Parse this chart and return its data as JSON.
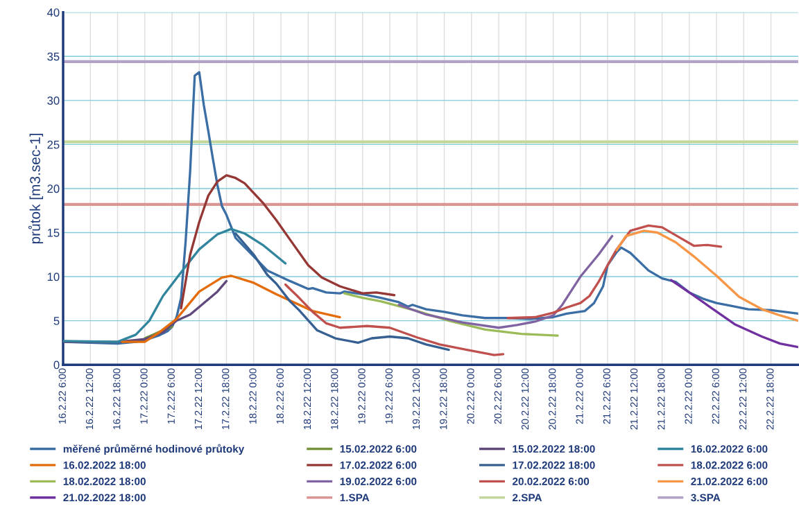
{
  "chart_data": {
    "type": "line",
    "ylabel": "průtok [m3.sec-1]",
    "ylim": [
      0,
      40
    ],
    "yticks": [
      0,
      5,
      10,
      15,
      20,
      25,
      30,
      35,
      40
    ],
    "xlim": [
      "2022-02-16T06:00",
      "2022-02-23T00:00"
    ],
    "xticks": [
      {
        "value": "2022-02-16T06:00",
        "label": "16.2.22 6:00"
      },
      {
        "value": "2022-02-16T12:00",
        "label": "16.2.22 12:00"
      },
      {
        "value": "2022-02-16T18:00",
        "label": "16.2.22 18:00"
      },
      {
        "value": "2022-02-17T00:00",
        "label": "17.2.22 0:00"
      },
      {
        "value": "2022-02-17T06:00",
        "label": "17.2.22 6:00"
      },
      {
        "value": "2022-02-17T12:00",
        "label": "17.2.22 12:00"
      },
      {
        "value": "2022-02-17T18:00",
        "label": "17.2.22 18:00"
      },
      {
        "value": "2022-02-18T00:00",
        "label": "18.2.22 0:00"
      },
      {
        "value": "2022-02-18T06:00",
        "label": "18.2.22 6:00"
      },
      {
        "value": "2022-02-18T12:00",
        "label": "18.2.22 12:00"
      },
      {
        "value": "2022-02-18T18:00",
        "label": "18.2.22 18:00"
      },
      {
        "value": "2022-02-19T00:00",
        "label": "19.2.22 0:00"
      },
      {
        "value": "2022-02-19T06:00",
        "label": "19.2.22 6:00"
      },
      {
        "value": "2022-02-19T12:00",
        "label": "19.2.22 12:00"
      },
      {
        "value": "2022-02-19T18:00",
        "label": "19.2.22 18:00"
      },
      {
        "value": "2022-02-20T00:00",
        "label": "20.2.22 0:00"
      },
      {
        "value": "2022-02-20T06:00",
        "label": "20.2.22 6:00"
      },
      {
        "value": "2022-02-20T12:00",
        "label": "20.2.22 12:00"
      },
      {
        "value": "2022-02-20T18:00",
        "label": "20.2.22 18:00"
      },
      {
        "value": "2022-02-21T00:00",
        "label": "21.2.22 0:00"
      },
      {
        "value": "2022-02-21T06:00",
        "label": "21.2.22 6:00"
      },
      {
        "value": "2022-02-21T12:00",
        "label": "21.2.22 12:00"
      },
      {
        "value": "2022-02-21T18:00",
        "label": "21.2.22 18:00"
      },
      {
        "value": "2022-02-22T00:00",
        "label": "22.2.22 0:00"
      },
      {
        "value": "2022-02-22T06:00",
        "label": "22.2.22 6:00"
      },
      {
        "value": "2022-02-22T12:00",
        "label": "22.2.22 12:00"
      },
      {
        "value": "2022-02-22T18:00",
        "label": "22.2.22 18:00"
      }
    ],
    "grid": true,
    "legend": "bottom",
    "marker": "none",
    "line_style": "solid",
    "series": [
      {
        "name": "měřené průměrné hodinové průtoky",
        "color": "#3a6ea5",
        "x": [
          "2022-02-16T06:00",
          "2022-02-16T12:00",
          "2022-02-16T18:00",
          "2022-02-16T22:00",
          "2022-02-17T00:00",
          "2022-02-17T03:00",
          "2022-02-17T05:00",
          "2022-02-17T06:00",
          "2022-02-17T07:00",
          "2022-02-17T08:00",
          "2022-02-17T09:00",
          "2022-02-17T10:00",
          "2022-02-17T11:00",
          "2022-02-17T12:00",
          "2022-02-17T13:00",
          "2022-02-17T14:00",
          "2022-02-17T15:00",
          "2022-02-17T16:00",
          "2022-02-17T17:00",
          "2022-02-17T18:00",
          "2022-02-17T20:00",
          "2022-02-18T00:00",
          "2022-02-18T03:00",
          "2022-02-18T08:00",
          "2022-02-18T12:00",
          "2022-02-18T13:00",
          "2022-02-18T16:00",
          "2022-02-18T19:00",
          "2022-02-18T20:00",
          "2022-02-19T00:00",
          "2022-02-19T04:00",
          "2022-02-19T08:00",
          "2022-02-19T10:00",
          "2022-02-19T11:00",
          "2022-02-19T14:00",
          "2022-02-19T18:00",
          "2022-02-19T22:00",
          "2022-02-20T03:00",
          "2022-02-20T08:00",
          "2022-02-20T13:00",
          "2022-02-20T18:00",
          "2022-02-20T21:00",
          "2022-02-21T01:00",
          "2022-02-21T03:00",
          "2022-02-21T05:00",
          "2022-02-21T06:00",
          "2022-02-21T08:00",
          "2022-02-21T09:00",
          "2022-02-21T11:00",
          "2022-02-21T15:00",
          "2022-02-21T18:00",
          "2022-02-21T21:00",
          "2022-02-22T00:00",
          "2022-02-22T03:00",
          "2022-02-22T06:00",
          "2022-02-22T09:00",
          "2022-02-22T13:00",
          "2022-02-22T18:00",
          "2022-02-23T00:00"
        ],
        "values": [
          2.6,
          2.5,
          2.4,
          2.6,
          2.8,
          3.3,
          3.8,
          4.3,
          5.4,
          7.6,
          14,
          22,
          32.8,
          33.2,
          29.5,
          26.5,
          23.4,
          20.4,
          18.0,
          17.0,
          14.4,
          12.3,
          10.7,
          9.5,
          8.6,
          8.7,
          8.2,
          8.1,
          8.3,
          8.0,
          7.6,
          7.1,
          6.6,
          6.8,
          6.3,
          6.0,
          5.6,
          5.3,
          5.3,
          5.2,
          5.4,
          5.8,
          6.1,
          7.0,
          8.9,
          11.3,
          12.8,
          13.3,
          12.7,
          10.7,
          9.8,
          9.4,
          8.2,
          7.5,
          7.0,
          6.7,
          6.3,
          6.2,
          5.8
        ]
      },
      {
        "name": "15.02.2022 6:00",
        "color": "#77933c",
        "x": [
          "2022-02-17T00:00",
          "2022-02-17T04:00",
          "2022-02-17T06:00"
        ],
        "values": [
          3.0,
          3.9,
          4.3
        ]
      },
      {
        "name": "15.02.2022 18:00",
        "color": "#604a7b",
        "x": [
          "2022-02-16T06:00",
          "2022-02-16T18:00",
          "2022-02-17T00:00",
          "2022-02-17T04:00",
          "2022-02-17T07:00",
          "2022-02-17T10:00",
          "2022-02-17T13:00",
          "2022-02-17T16:00",
          "2022-02-17T18:00"
        ],
        "values": [
          2.6,
          2.6,
          2.9,
          3.7,
          5.0,
          5.7,
          7.0,
          8.3,
          9.5
        ]
      },
      {
        "name": "16.02.2022 6:00",
        "color": "#31859c",
        "x": [
          "2022-02-16T06:00",
          "2022-02-16T18:00",
          "2022-02-16T22:00",
          "2022-02-17T01:00",
          "2022-02-17T04:00",
          "2022-02-17T08:00",
          "2022-02-17T12:00",
          "2022-02-17T16:00",
          "2022-02-17T19:00",
          "2022-02-17T22:00",
          "2022-02-18T02:00",
          "2022-02-18T07:00"
        ],
        "values": [
          2.7,
          2.6,
          3.4,
          5.0,
          7.8,
          10.5,
          13.1,
          14.8,
          15.4,
          14.9,
          13.6,
          11.5
        ]
      },
      {
        "name": "16.02.2022 18:00",
        "color": "#e46c0a",
        "x": [
          "2022-02-16T19:00",
          "2022-02-17T00:00",
          "2022-02-17T03:00",
          "2022-02-17T07:00",
          "2022-02-17T12:00",
          "2022-02-17T17:00",
          "2022-02-17T19:00",
          "2022-02-18T00:00",
          "2022-02-18T05:00",
          "2022-02-18T13:00",
          "2022-02-18T19:00"
        ],
        "values": [
          2.6,
          2.6,
          3.6,
          5.2,
          8.3,
          9.9,
          10.1,
          9.3,
          8.0,
          6.1,
          5.4
        ]
      },
      {
        "name": "17.02.2022 6:00",
        "color": "#953735",
        "x": [
          "2022-02-17T08:00",
          "2022-02-17T10:00",
          "2022-02-17T12:00",
          "2022-02-17T14:00",
          "2022-02-17T16:00",
          "2022-02-17T18:00",
          "2022-02-17T20:00",
          "2022-02-17T22:00",
          "2022-02-18T02:00",
          "2022-02-18T05:00",
          "2022-02-18T08:00",
          "2022-02-18T12:00",
          "2022-02-18T15:00",
          "2022-02-18T19:00",
          "2022-02-19T00:00",
          "2022-02-19T03:00",
          "2022-02-19T07:00"
        ],
        "values": [
          6.4,
          12.5,
          16.2,
          19.2,
          20.8,
          21.5,
          21.2,
          20.6,
          18.4,
          16.4,
          14.2,
          11.3,
          9.9,
          8.9,
          8.1,
          8.2,
          7.9
        ]
      },
      {
        "name": "17.02.2022 18:00",
        "color": "#376092",
        "x": [
          "2022-02-17T20:00",
          "2022-02-18T00:00",
          "2022-02-18T03:00",
          "2022-02-18T05:00",
          "2022-02-18T08:00",
          "2022-02-18T10:00",
          "2022-02-18T14:00",
          "2022-02-18T18:00",
          "2022-02-18T23:00",
          "2022-02-19T02:00",
          "2022-02-19T06:00",
          "2022-02-19T10:00",
          "2022-02-19T14:00",
          "2022-02-19T19:00"
        ],
        "values": [
          14.9,
          12.5,
          10.2,
          9.2,
          7.2,
          6.2,
          3.9,
          3.0,
          2.5,
          3.0,
          3.2,
          3.0,
          2.3,
          1.7
        ]
      },
      {
        "name": "18.02.2022 6:00",
        "color": "#c0504d",
        "x": [
          "2022-02-18T07:00",
          "2022-02-18T10:00",
          "2022-02-18T13:00",
          "2022-02-18T16:00",
          "2022-02-18T19:00",
          "2022-02-19T01:00",
          "2022-02-19T06:00",
          "2022-02-19T12:00",
          "2022-02-19T17:00",
          "2022-02-19T23:00",
          "2022-02-20T05:00",
          "2022-02-20T07:00"
        ],
        "values": [
          9.1,
          7.6,
          6.0,
          4.7,
          4.2,
          4.4,
          4.2,
          3.1,
          2.3,
          1.7,
          1.1,
          1.2
        ]
      },
      {
        "name": "18.02.2022 18:00",
        "color": "#9bbb59",
        "x": [
          "2022-02-18T20:00",
          "2022-02-19T00:00",
          "2022-02-19T04:00",
          "2022-02-19T12:00",
          "2022-02-19T19:00",
          "2022-02-20T03:00",
          "2022-02-20T11:00",
          "2022-02-20T15:00",
          "2022-02-20T19:00"
        ],
        "values": [
          8.1,
          7.6,
          7.2,
          6.1,
          5.0,
          4.0,
          3.5,
          3.4,
          3.3
        ]
      },
      {
        "name": "19.02.2022 6:00",
        "color": "#8064a2",
        "x": [
          "2022-02-19T08:00",
          "2022-02-19T14:00",
          "2022-02-19T22:00",
          "2022-02-20T06:00",
          "2022-02-20T10:00",
          "2022-02-20T14:00",
          "2022-02-20T18:00",
          "2022-02-20T20:00",
          "2022-02-21T00:00",
          "2022-02-21T04:00",
          "2022-02-21T07:00"
        ],
        "values": [
          6.8,
          5.7,
          4.8,
          4.2,
          4.5,
          4.9,
          5.6,
          6.8,
          10.0,
          12.5,
          14.6
        ]
      },
      {
        "name": "20.02.2022 6:00",
        "color": "#c0504d",
        "x": [
          "2022-02-20T08:00",
          "2022-02-20T14:00",
          "2022-02-20T18:00",
          "2022-02-20T21:00",
          "2022-02-21T00:00",
          "2022-02-21T02:00",
          "2022-02-21T04:00",
          "2022-02-21T06:00",
          "2022-02-21T08:00",
          "2022-02-21T11:00",
          "2022-02-21T15:00",
          "2022-02-21T18:00",
          "2022-02-21T22:00",
          "2022-02-22T01:00",
          "2022-02-22T04:00",
          "2022-02-22T07:00"
        ],
        "values": [
          5.3,
          5.4,
          5.9,
          6.5,
          7.0,
          7.8,
          9.4,
          11.3,
          13.1,
          15.2,
          15.8,
          15.6,
          14.4,
          13.5,
          13.6,
          13.4
        ]
      },
      {
        "name": "21.02.2022 6:00",
        "color": "#f79646",
        "x": [
          "2022-02-21T08:00",
          "2022-02-21T10:00",
          "2022-02-21T14:00",
          "2022-02-21T17:00",
          "2022-02-21T21:00",
          "2022-02-22T01:00",
          "2022-02-22T06:00",
          "2022-02-22T11:00",
          "2022-02-22T16:00",
          "2022-02-22T20:00",
          "2022-02-23T00:00"
        ],
        "values": [
          13.0,
          14.6,
          15.2,
          15.0,
          13.9,
          12.3,
          10.1,
          7.7,
          6.3,
          5.6,
          5.0
        ]
      },
      {
        "name": "21.02.2022 18:00",
        "color": "#7030a0",
        "x": [
          "2022-02-21T20:00",
          "2022-02-22T00:00",
          "2022-02-22T05:00",
          "2022-02-22T10:00",
          "2022-02-22T16:00",
          "2022-02-22T20:00",
          "2022-02-23T00:00"
        ],
        "values": [
          9.6,
          8.2,
          6.4,
          4.6,
          3.2,
          2.4,
          2.0
        ]
      }
    ],
    "ref_lines": [
      {
        "axis": "y",
        "value": 18.2,
        "label": "1.SPA",
        "color": "#d99694"
      },
      {
        "axis": "y",
        "value": 25.3,
        "label": "2.SPA",
        "color": "#c3d69b"
      },
      {
        "axis": "y",
        "value": 34.4,
        "label": "3.SPA",
        "color": "#b3a2c7"
      }
    ]
  }
}
